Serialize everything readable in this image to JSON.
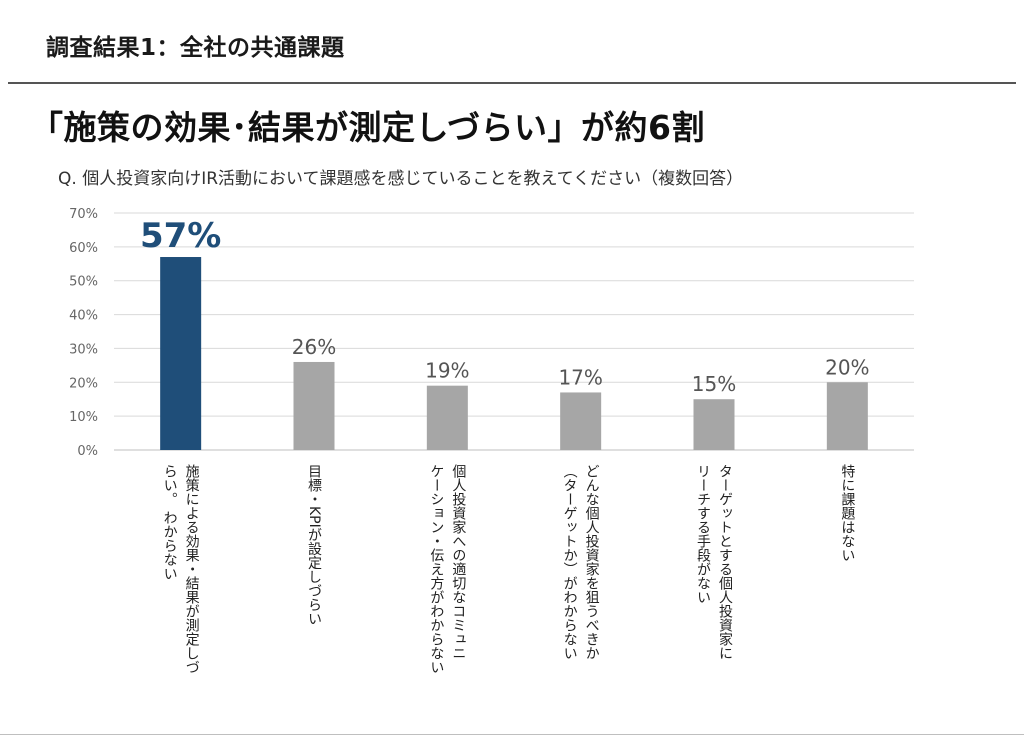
{
  "header": {
    "section_title": "調査結果1：全社の共通課題",
    "headline": "「施策の効果･結果が測定しづらい」が約6割",
    "question": "Q. 個人投資家向けIR活動において課題感を感じていることを教えてください（複数回答）"
  },
  "chart_data": {
    "type": "bar",
    "title": "",
    "xlabel": "",
    "ylabel": "",
    "ylim": [
      0,
      70
    ],
    "y_ticks": [
      "0%",
      "10%",
      "20%",
      "30%",
      "40%",
      "50%",
      "60%",
      "70%"
    ],
    "grid": true,
    "categories": [
      [
        "施策による効果・結果が測定しづ",
        "らい。 わからない"
      ],
      [
        "目標・KPIが設定しづらい"
      ],
      [
        "個人投資家への適切なコミュニ",
        "ケーション・伝え方がわからない"
      ],
      [
        "どんな個人投資家を狙うべきか",
        "（ターゲットか）がわからない"
      ],
      [
        "ターゲットとする個人投資家に",
        "リーチする手段がない"
      ],
      [
        "特に課題はない"
      ]
    ],
    "values": [
      57,
      26,
      19,
      17,
      15,
      20
    ],
    "value_labels": [
      "57%",
      "26%",
      "19%",
      "17%",
      "15%",
      "20%"
    ],
    "highlight_index": 0,
    "colors": {
      "highlight": "#1f4e79",
      "default": "#a6a6a6",
      "highlight_label": "#1f4e79",
      "grid": "#d9d9d9"
    }
  }
}
